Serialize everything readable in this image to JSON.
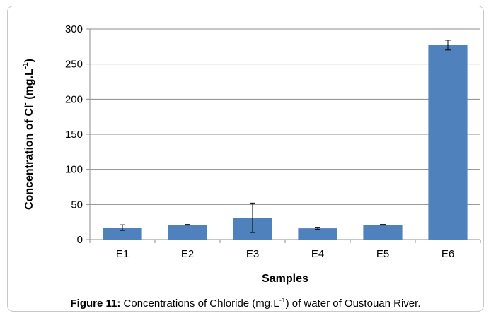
{
  "chart_data": {
    "type": "bar",
    "y_label": [
      "Concentration of Cl",
      "-",
      " (mg.L",
      "-1",
      ")"
    ],
    "x_label": "Samples",
    "categories": [
      "E1",
      "E2",
      "E3",
      "E4",
      "E5",
      "E6"
    ],
    "series": [
      {
        "color": "#4f81bd",
        "values": [
          17,
          21,
          31,
          16,
          21,
          277
        ],
        "errors": [
          4,
          0.5,
          21,
          1.5,
          0.5,
          7
        ]
      }
    ],
    "ylim": [
      0,
      300
    ],
    "yticks": [
      0,
      50,
      100,
      150,
      200,
      250,
      300
    ],
    "grid": true,
    "caption": {
      "label": "Figure 11:",
      "text": [
        " Concentrations of Chloride (mg.L",
        "-1",
        ") of water of Oustouan River."
      ]
    }
  }
}
